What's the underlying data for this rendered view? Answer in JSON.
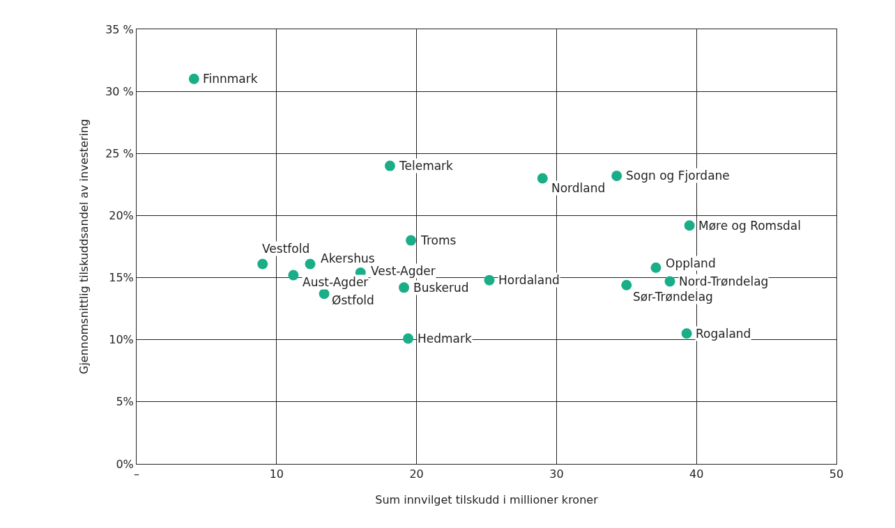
{
  "chart_data": {
    "type": "scatter",
    "xlabel": "Sum innvilget tilskudd i millioner kroner",
    "ylabel": "Gjennomsnittlig tilskuddsandel av investering",
    "xlim": [
      0,
      50
    ],
    "xticks": [
      {
        "value": 0,
        "label": "–"
      },
      10,
      20,
      30,
      40,
      50
    ],
    "ylim": [
      0,
      35
    ],
    "yticks": [
      {
        "value": 0,
        "label": "0%"
      },
      {
        "value": 5,
        "label": "5%"
      },
      {
        "value": 10,
        "label": "10%"
      },
      {
        "value": 15,
        "label": "15%"
      },
      {
        "value": 20,
        "label": "20%"
      },
      {
        "value": 25,
        "label": "25 %"
      },
      {
        "value": 30,
        "label": "30 %"
      },
      {
        "value": 35,
        "label": "35 %"
      }
    ],
    "grid": true,
    "legend": false,
    "marker": "circle",
    "series": [
      {
        "name": "Finnmark",
        "color": "#1aae88",
        "x": [
          4.1
        ],
        "values": [
          31.0
        ]
      },
      {
        "name": "Telemark",
        "color": "#1aae88",
        "x": [
          18.1
        ],
        "values": [
          24.0
        ]
      },
      {
        "name": "Nordland",
        "color": "#1aae88",
        "x": [
          29.0
        ],
        "values": [
          23.0
        ]
      },
      {
        "name": "Sogn og Fjordane",
        "color": "#1aae88",
        "x": [
          34.3
        ],
        "values": [
          23.2
        ]
      },
      {
        "name": "Møre og Romsdal",
        "color": "#1aae88",
        "x": [
          39.5
        ],
        "values": [
          19.2
        ]
      },
      {
        "name": "Troms",
        "color": "#1aae88",
        "x": [
          19.6
        ],
        "values": [
          18.0
        ]
      },
      {
        "name": "Vestfold",
        "color": "#1aae88",
        "x": [
          9.0
        ],
        "values": [
          16.1
        ]
      },
      {
        "name": "Akershus",
        "color": "#1aae88",
        "x": [
          12.4
        ],
        "values": [
          16.1
        ]
      },
      {
        "name": "Aust-Agder",
        "color": "#1aae88",
        "x": [
          11.2
        ],
        "values": [
          15.2
        ]
      },
      {
        "name": "Vest-Agder",
        "color": "#1aae88",
        "x": [
          16.0
        ],
        "values": [
          15.4
        ]
      },
      {
        "name": "Oppland",
        "color": "#1aae88",
        "x": [
          37.1
        ],
        "values": [
          15.8
        ]
      },
      {
        "name": "Hordaland",
        "color": "#1aae88",
        "x": [
          25.2
        ],
        "values": [
          14.8
        ]
      },
      {
        "name": "Nord-Trøndelag",
        "color": "#1aae88",
        "x": [
          38.1
        ],
        "values": [
          14.7
        ]
      },
      {
        "name": "Sør-Trøndelag",
        "color": "#1aae88",
        "x": [
          35.0
        ],
        "values": [
          14.4
        ]
      },
      {
        "name": "Buskerud",
        "color": "#1aae88",
        "x": [
          19.1
        ],
        "values": [
          14.2
        ]
      },
      {
        "name": "Østfold",
        "color": "#1aae88",
        "x": [
          13.4
        ],
        "values": [
          13.7
        ]
      },
      {
        "name": "Hedmark",
        "color": "#1aae88",
        "x": [
          19.4
        ],
        "values": [
          10.1
        ]
      },
      {
        "name": "Rogaland",
        "color": "#1aae88",
        "x": [
          39.3
        ],
        "values": [
          10.5
        ]
      }
    ]
  }
}
